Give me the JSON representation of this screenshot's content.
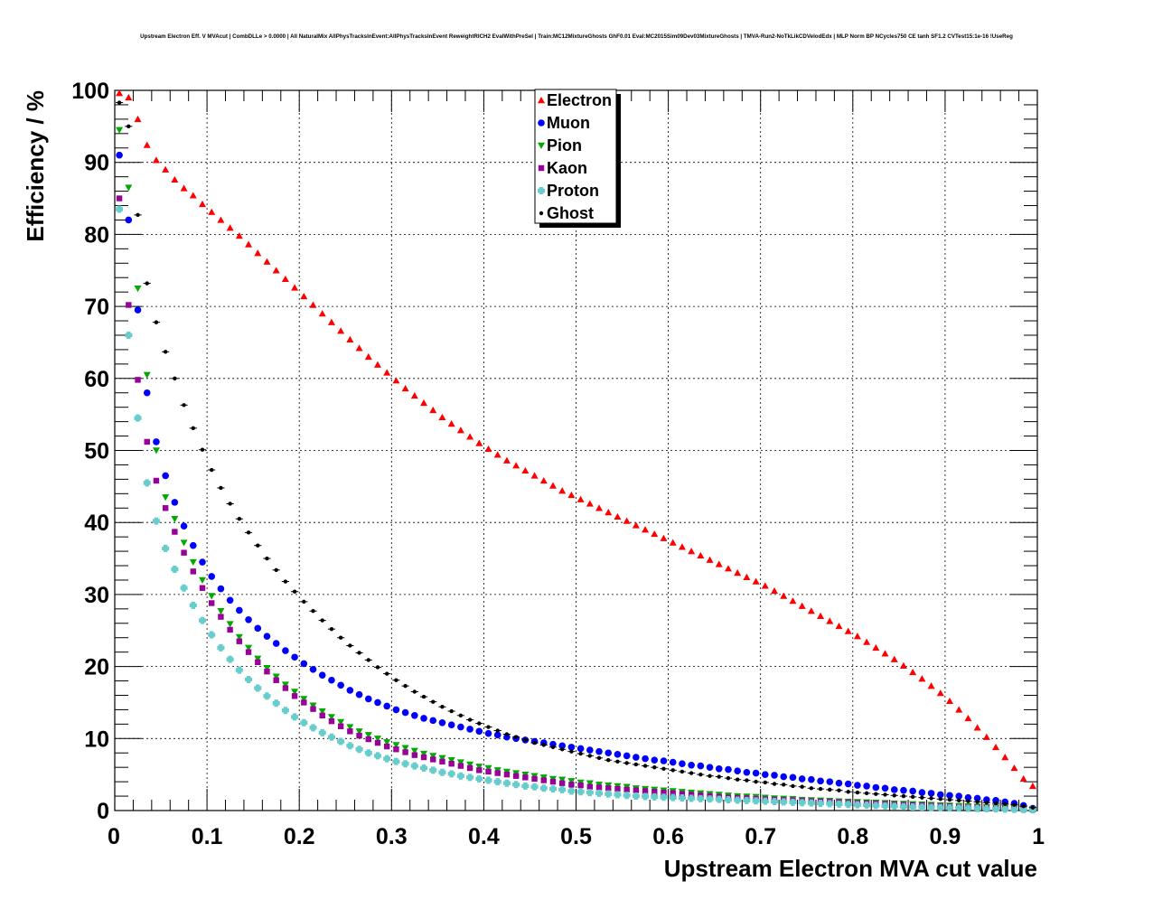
{
  "chart_data": {
    "type": "scatter",
    "title": "Upstream Electron Eff. V MVAcut | CombDLLe > 0.0000 | All NaturalMix AllPhysTracksInEvent:AllPhysTracksInEvent ReweightRICH2 EvalWithPreSel | Train:MC12MixtureGhosts GhF0.01 Eval:MC2015Sim09Dev03MixtureGhosts | TMVA-Run2-NoTkLikCDVelodEdx | MLP Norm BP NCycles750 CE tanh SF1.2 CVTest15:1e-16 !UseReg",
    "xlabel": "Upstream Electron MVA cut value",
    "ylabel": "Efficiency / %",
    "xlim": [
      0,
      1
    ],
    "ylim": [
      0,
      100
    ],
    "x_ticks": [
      "0",
      "0.1",
      "0.2",
      "0.3",
      "0.4",
      "0.5",
      "0.6",
      "0.7",
      "0.8",
      "0.9",
      "1"
    ],
    "y_ticks": [
      "0",
      "10",
      "20",
      "30",
      "40",
      "50",
      "60",
      "70",
      "80",
      "90",
      "100"
    ],
    "grid": true,
    "legend_position": "top-center",
    "x": [
      0.005,
      0.015,
      0.025,
      0.035,
      0.045,
      0.055,
      0.065,
      0.075,
      0.085,
      0.095,
      0.105,
      0.115,
      0.125,
      0.135,
      0.145,
      0.155,
      0.165,
      0.175,
      0.185,
      0.195,
      0.205,
      0.215,
      0.225,
      0.235,
      0.245,
      0.255,
      0.265,
      0.275,
      0.285,
      0.295,
      0.305,
      0.315,
      0.325,
      0.335,
      0.345,
      0.355,
      0.365,
      0.375,
      0.385,
      0.395,
      0.405,
      0.415,
      0.425,
      0.435,
      0.445,
      0.455,
      0.465,
      0.475,
      0.485,
      0.495,
      0.505,
      0.515,
      0.525,
      0.535,
      0.545,
      0.555,
      0.565,
      0.575,
      0.585,
      0.595,
      0.605,
      0.615,
      0.625,
      0.635,
      0.645,
      0.655,
      0.665,
      0.675,
      0.685,
      0.695,
      0.705,
      0.715,
      0.725,
      0.735,
      0.745,
      0.755,
      0.765,
      0.775,
      0.785,
      0.795,
      0.805,
      0.815,
      0.825,
      0.835,
      0.845,
      0.855,
      0.865,
      0.875,
      0.885,
      0.895,
      0.905,
      0.915,
      0.925,
      0.935,
      0.945,
      0.955,
      0.965,
      0.975,
      0.985,
      0.995
    ],
    "series": [
      {
        "name": "Electron",
        "color": "#ff0000",
        "marker": "triangle-up",
        "values": [
          99.6,
          99.0,
          96.0,
          92.4,
          90.3,
          89.0,
          87.6,
          86.4,
          85.4,
          84.2,
          83.1,
          82.0,
          80.9,
          79.8,
          78.6,
          77.4,
          76.2,
          75.0,
          73.8,
          72.6,
          71.4,
          70.2,
          69.0,
          67.8,
          66.6,
          65.4,
          64.2,
          63.0,
          61.9,
          60.8,
          59.7,
          58.6,
          57.6,
          56.6,
          55.6,
          54.6,
          53.7,
          52.8,
          51.9,
          51.0,
          50.2,
          49.4,
          48.6,
          47.9,
          47.2,
          46.5,
          45.8,
          45.1,
          44.4,
          43.8,
          43.2,
          42.6,
          42.0,
          41.4,
          40.8,
          40.2,
          39.6,
          39.0,
          38.4,
          37.8,
          37.2,
          36.6,
          36.0,
          35.4,
          34.8,
          34.2,
          33.6,
          33.0,
          32.4,
          31.8,
          31.2,
          30.5,
          29.8,
          29.1,
          28.4,
          27.7,
          27.0,
          26.3,
          25.6,
          24.9,
          24.2,
          23.4,
          22.6,
          21.8,
          21.0,
          20.1,
          19.2,
          18.3,
          17.3,
          16.3,
          15.2,
          14.0,
          12.8,
          11.5,
          10.2,
          8.8,
          7.4,
          5.9,
          4.4,
          3.4
        ]
      },
      {
        "name": "Muon",
        "color": "#0000ff",
        "marker": "circle",
        "values": [
          91.0,
          82.0,
          69.5,
          58.0,
          51.2,
          46.5,
          42.8,
          39.5,
          36.8,
          34.5,
          32.5,
          30.8,
          29.2,
          27.8,
          26.5,
          25.3,
          24.2,
          23.2,
          22.2,
          21.3,
          20.4,
          19.6,
          18.8,
          18.1,
          17.4,
          16.7,
          16.1,
          15.5,
          15.0,
          14.5,
          14.0,
          13.6,
          13.2,
          12.8,
          12.5,
          12.2,
          11.9,
          11.6,
          11.3,
          11.0,
          10.7,
          10.5,
          10.2,
          10.0,
          9.8,
          9.6,
          9.4,
          9.2,
          9.0,
          8.8,
          8.6,
          8.4,
          8.2,
          8.0,
          7.8,
          7.6,
          7.4,
          7.2,
          7.0,
          6.9,
          6.7,
          6.5,
          6.3,
          6.2,
          6.0,
          5.8,
          5.7,
          5.5,
          5.3,
          5.2,
          5.0,
          4.9,
          4.7,
          4.6,
          4.4,
          4.3,
          4.1,
          4.0,
          3.8,
          3.7,
          3.5,
          3.4,
          3.2,
          3.1,
          2.9,
          2.8,
          2.7,
          2.5,
          2.4,
          2.2,
          2.1,
          2.0,
          1.8,
          1.7,
          1.5,
          1.4,
          1.2,
          1.0,
          0.7,
          0.3
        ]
      },
      {
        "name": "Pion",
        "color": "#00aa00",
        "marker": "triangle-down",
        "values": [
          94.5,
          86.5,
          72.5,
          60.5,
          50.0,
          43.5,
          40.5,
          37.2,
          34.5,
          32.0,
          29.8,
          27.7,
          25.9,
          24.1,
          22.6,
          21.1,
          19.8,
          18.6,
          17.5,
          16.5,
          15.5,
          14.6,
          13.8,
          13.0,
          12.3,
          11.6,
          11.0,
          10.5,
          10.0,
          9.5,
          9.1,
          8.7,
          8.3,
          7.9,
          7.6,
          7.3,
          7.0,
          6.7,
          6.4,
          6.1,
          5.9,
          5.6,
          5.4,
          5.2,
          5.0,
          4.8,
          4.6,
          4.4,
          4.3,
          4.1,
          3.9,
          3.8,
          3.6,
          3.5,
          3.4,
          3.3,
          3.1,
          3.0,
          2.9,
          2.8,
          2.7,
          2.6,
          2.5,
          2.4,
          2.3,
          2.2,
          2.1,
          2.0,
          1.95,
          1.9,
          1.8,
          1.7,
          1.65,
          1.6,
          1.5,
          1.45,
          1.4,
          1.35,
          1.3,
          1.25,
          1.2,
          1.15,
          1.1,
          1.05,
          1.0,
          0.95,
          0.9,
          0.85,
          0.8,
          0.75,
          0.7,
          0.65,
          0.6,
          0.55,
          0.5,
          0.45,
          0.4,
          0.35,
          0.3,
          0.2
        ]
      },
      {
        "name": "Kaon",
        "color": "#990099",
        "marker": "square",
        "values": [
          85.0,
          70.2,
          59.8,
          51.2,
          45.8,
          42.0,
          38.7,
          35.8,
          33.2,
          30.9,
          28.8,
          26.9,
          25.1,
          23.5,
          22.0,
          20.6,
          19.3,
          18.1,
          17.0,
          15.9,
          15.0,
          14.1,
          13.2,
          12.4,
          11.7,
          11.0,
          10.4,
          9.9,
          9.4,
          8.9,
          8.5,
          8.1,
          7.7,
          7.4,
          7.1,
          6.8,
          6.5,
          6.2,
          5.9,
          5.6,
          5.4,
          5.2,
          5.0,
          4.8,
          4.6,
          4.4,
          4.2,
          4.0,
          3.8,
          3.6,
          3.5,
          3.3,
          3.2,
          3.1,
          3.0,
          2.9,
          2.8,
          2.7,
          2.6,
          2.5,
          2.4,
          2.3,
          2.2,
          2.1,
          2.0,
          1.9,
          1.8,
          1.75,
          1.7,
          1.6,
          1.55,
          1.5,
          1.45,
          1.4,
          1.35,
          1.3,
          1.25,
          1.2,
          1.15,
          1.1,
          1.05,
          1.0,
          0.95,
          0.9,
          0.85,
          0.8,
          0.75,
          0.7,
          0.65,
          0.6,
          0.55,
          0.5,
          0.45,
          0.42,
          0.4,
          0.35,
          0.3,
          0.25,
          0.2,
          0.15
        ]
      },
      {
        "name": "Proton",
        "color": "#66cccc",
        "marker": "cross",
        "values": [
          83.5,
          66.0,
          54.5,
          45.5,
          40.2,
          36.4,
          33.5,
          30.9,
          28.5,
          26.4,
          24.4,
          22.6,
          21.0,
          19.5,
          18.2,
          17.0,
          15.9,
          14.9,
          13.9,
          13.0,
          12.2,
          11.5,
          10.8,
          10.2,
          9.6,
          9.0,
          8.5,
          8.0,
          7.6,
          7.2,
          6.8,
          6.5,
          6.2,
          5.9,
          5.6,
          5.3,
          5.1,
          4.8,
          4.6,
          4.4,
          4.2,
          4.0,
          3.8,
          3.6,
          3.4,
          3.3,
          3.1,
          3.0,
          2.9,
          2.7,
          2.6,
          2.5,
          2.4,
          2.3,
          2.2,
          2.1,
          2.0,
          1.95,
          1.9,
          1.85,
          1.8,
          1.75,
          1.7,
          1.65,
          1.6,
          1.55,
          1.5,
          1.45,
          1.4,
          1.35,
          1.3,
          1.25,
          1.2,
          1.15,
          1.1,
          1.05,
          1.0,
          0.95,
          0.9,
          0.85,
          0.8,
          0.75,
          0.7,
          0.65,
          0.6,
          0.55,
          0.5,
          0.47,
          0.44,
          0.41,
          0.38,
          0.35,
          0.32,
          0.29,
          0.26,
          0.23,
          0.2,
          0.17,
          0.14,
          0.1
        ]
      },
      {
        "name": "Ghost",
        "color": "#000000",
        "marker": "dot",
        "values": [
          98.3,
          95.0,
          82.7,
          73.2,
          67.8,
          63.7,
          60.0,
          56.3,
          53.1,
          50.1,
          47.3,
          44.8,
          42.6,
          40.5,
          38.6,
          36.8,
          35.0,
          33.4,
          31.8,
          30.4,
          29.0,
          27.7,
          26.4,
          25.2,
          24.0,
          22.9,
          21.9,
          20.9,
          19.9,
          19.0,
          18.1,
          17.3,
          16.5,
          15.8,
          15.1,
          14.4,
          13.8,
          13.2,
          12.6,
          12.1,
          11.6,
          11.1,
          10.6,
          10.2,
          9.8,
          9.4,
          9.1,
          8.8,
          8.5,
          8.2,
          7.9,
          7.6,
          7.3,
          7.0,
          6.8,
          6.6,
          6.4,
          6.2,
          6.0,
          5.8,
          5.6,
          5.4,
          5.2,
          5.0,
          4.8,
          4.7,
          4.5,
          4.3,
          4.2,
          4.0,
          3.9,
          3.7,
          3.6,
          3.4,
          3.3,
          3.1,
          3.0,
          2.9,
          2.8,
          2.6,
          2.5,
          2.4,
          2.3,
          2.2,
          2.1,
          2.0,
          1.9,
          1.8,
          1.7,
          1.6,
          1.5,
          1.4,
          1.3,
          1.2,
          1.1,
          1.0,
          0.9,
          0.8,
          0.6,
          0.4
        ]
      }
    ]
  }
}
